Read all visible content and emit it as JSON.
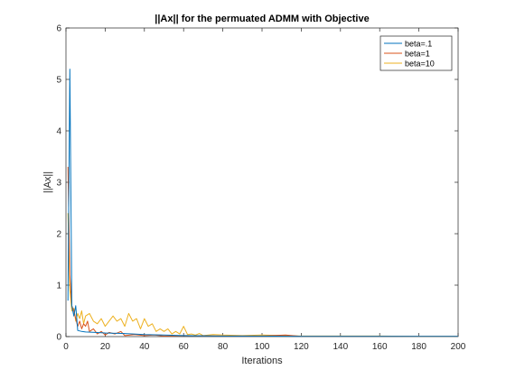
{
  "chart_data": {
    "type": "line",
    "title": "||Ax|| for the permuated ADMM with Objective",
    "xlabel": "Iterations",
    "ylabel": "||Ax||",
    "xlim": [
      0,
      200
    ],
    "ylim": [
      0,
      6
    ],
    "xticks": [
      0,
      20,
      40,
      60,
      80,
      100,
      120,
      140,
      160,
      180,
      200
    ],
    "yticks": [
      0,
      1,
      2,
      3,
      4,
      5,
      6
    ],
    "grid": false,
    "legend_position": "top-right",
    "series": [
      {
        "name": "beta=.1",
        "color": "#0072BD",
        "x": [
          1,
          2,
          3,
          4,
          5,
          6,
          8,
          10,
          15,
          20,
          30,
          40,
          50,
          60,
          70,
          80,
          100,
          120,
          150,
          200
        ],
        "y": [
          0.7,
          5.2,
          0.6,
          0.4,
          0.6,
          0.12,
          0.1,
          0.09,
          0.08,
          0.07,
          0.06,
          0.04,
          0.03,
          0.02,
          0.015,
          0.01,
          0.01,
          0.005,
          0.005,
          0.005
        ]
      },
      {
        "name": "beta=1",
        "color": "#D95319",
        "x": [
          1,
          2,
          3,
          4,
          5,
          6,
          7,
          8,
          9,
          10,
          11,
          12,
          14,
          16,
          18,
          20,
          22,
          25,
          28,
          30,
          35,
          40,
          45,
          50,
          60,
          80,
          100,
          112,
          120,
          150,
          200
        ],
        "y": [
          3.3,
          1.2,
          0.6,
          0.5,
          0.35,
          0.2,
          0.3,
          0.15,
          0.25,
          0.2,
          0.3,
          0.1,
          0.15,
          0.05,
          0.1,
          0.03,
          0.08,
          0.05,
          0.1,
          0.02,
          0.04,
          0.02,
          0.03,
          0.01,
          0.02,
          0.01,
          0.01,
          0.03,
          0.005,
          0.005,
          0.005
        ]
      },
      {
        "name": "beta=10",
        "color": "#EDB120",
        "x": [
          1,
          2,
          3,
          4,
          5,
          6,
          7,
          8,
          9,
          10,
          12,
          14,
          16,
          18,
          20,
          22,
          24,
          26,
          28,
          30,
          32,
          34,
          36,
          38,
          40,
          42,
          44,
          46,
          48,
          50,
          52,
          54,
          56,
          58,
          60,
          62,
          64,
          66,
          68,
          70,
          75,
          80,
          90,
          100,
          110,
          120,
          140,
          160,
          180,
          200
        ],
        "y": [
          2.4,
          0.9,
          0.5,
          0.55,
          0.3,
          0.45,
          0.35,
          0.5,
          0.25,
          0.4,
          0.45,
          0.3,
          0.25,
          0.35,
          0.2,
          0.3,
          0.4,
          0.3,
          0.35,
          0.2,
          0.45,
          0.3,
          0.35,
          0.15,
          0.35,
          0.2,
          0.25,
          0.1,
          0.15,
          0.1,
          0.15,
          0.05,
          0.1,
          0.05,
          0.2,
          0.04,
          0.05,
          0.03,
          0.06,
          0.02,
          0.04,
          0.03,
          0.02,
          0.03,
          0.02,
          0.01,
          0.01,
          0.01,
          0.005,
          0.005
        ]
      }
    ]
  }
}
